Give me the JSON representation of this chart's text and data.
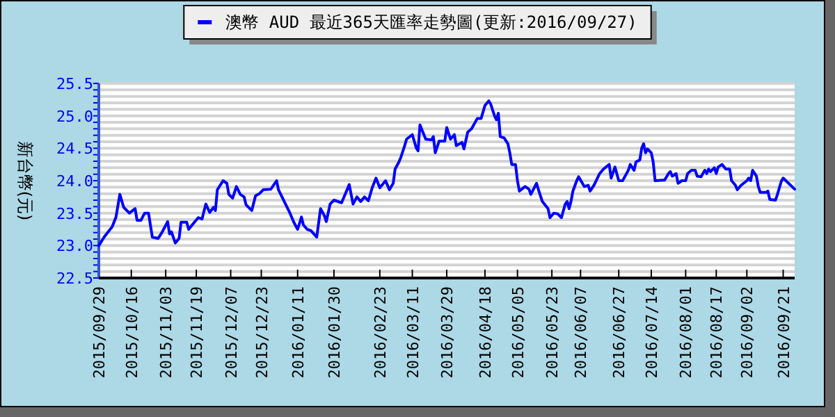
{
  "chart_data": {
    "type": "line",
    "ylabel": "新台幣(元)",
    "legend": "top",
    "grid": "y",
    "xlim": [
      "2015-09-29",
      "2016-09-27"
    ],
    "xticks": [
      {
        "value": "2015-09-29",
        "label": "2015/09/29"
      },
      {
        "value": "2015-10-16",
        "label": "2015/10/16"
      },
      {
        "value": "2015-11-03",
        "label": "2015/11/03"
      },
      {
        "value": "2015-11-19",
        "label": "2015/11/19"
      },
      {
        "value": "2015-12-07",
        "label": "2015/12/07"
      },
      {
        "value": "2015-12-23",
        "label": "2015/12/23"
      },
      {
        "value": "2016-01-11",
        "label": "2016/01/11"
      },
      {
        "value": "2016-01-30",
        "label": "2016/01/30"
      },
      {
        "value": "2016-02-23",
        "label": "2016/02/23"
      },
      {
        "value": "2016-03-11",
        "label": "2016/03/11"
      },
      {
        "value": "2016-03-29",
        "label": "2016/03/29"
      },
      {
        "value": "2016-04-18",
        "label": "2016/04/18"
      },
      {
        "value": "2016-05-05",
        "label": "2016/05/05"
      },
      {
        "value": "2016-05-23",
        "label": "2016/05/23"
      },
      {
        "value": "2016-06-07",
        "label": "2016/06/07"
      },
      {
        "value": "2016-06-27",
        "label": "2016/06/27"
      },
      {
        "value": "2016-07-14",
        "label": "2016/07/14"
      },
      {
        "value": "2016-08-01",
        "label": "2016/08/01"
      },
      {
        "value": "2016-08-17",
        "label": "2016/08/17"
      },
      {
        "value": "2016-09-02",
        "label": "2016/09/02"
      },
      {
        "value": "2016-09-21",
        "label": "2016/09/21"
      }
    ],
    "ylim": [
      22.5,
      25.5
    ],
    "yticks": [
      22.5,
      {
        "value": 22.6,
        "label": null
      },
      {
        "value": 22.7,
        "label": null
      },
      {
        "value": 22.8,
        "label": null
      },
      {
        "value": 22.9,
        "label": null
      },
      {
        "value": 23,
        "label": "23.0"
      },
      {
        "value": 23.1,
        "label": null
      },
      {
        "value": 23.2,
        "label": null
      },
      {
        "value": 23.3,
        "label": null
      },
      {
        "value": 23.4,
        "label": null
      },
      23.5,
      {
        "value": 23.6,
        "label": null
      },
      {
        "value": 23.7,
        "label": null
      },
      {
        "value": 23.8,
        "label": null
      },
      {
        "value": 23.9,
        "label": null
      },
      {
        "value": 24,
        "label": "24.0"
      },
      {
        "value": 24.1,
        "label": null
      },
      {
        "value": 24.2,
        "label": null
      },
      {
        "value": 24.3,
        "label": null
      },
      {
        "value": 24.4,
        "label": null
      },
      24.5,
      {
        "value": 24.6,
        "label": null
      },
      {
        "value": 24.7,
        "label": null
      },
      {
        "value": 24.8,
        "label": null
      },
      {
        "value": 24.9,
        "label": null
      },
      {
        "value": 25,
        "label": "25.0"
      },
      {
        "value": 25.1,
        "label": null
      },
      {
        "value": 25.2,
        "label": null
      },
      {
        "value": 25.3,
        "label": null
      },
      {
        "value": 25.4,
        "label": null
      },
      25.5
    ],
    "x": [
      "2015-09-29",
      "2015-10-02",
      "2015-10-06",
      "2015-10-08",
      "2015-10-10",
      "2015-10-12",
      "2015-10-15",
      "2015-10-18",
      "2015-10-19",
      "2015-10-21",
      "2015-10-23",
      "2015-10-25",
      "2015-10-27",
      "2015-10-30",
      "2015-11-01",
      "2015-11-04",
      "2015-11-05",
      "2015-11-06",
      "2015-11-08",
      "2015-11-10",
      "2015-11-11",
      "2015-11-14",
      "2015-11-15",
      "2015-11-18",
      "2015-11-20",
      "2015-11-22",
      "2015-11-24",
      "2015-11-26",
      "2015-11-28",
      "2015-11-29",
      "2015-11-30",
      "2015-12-03",
      "2015-12-05",
      "2015-12-06",
      "2015-12-08",
      "2015-12-10",
      "2015-12-12",
      "2015-12-14",
      "2015-12-15",
      "2015-12-18",
      "2015-12-20",
      "2015-12-22",
      "2015-12-24",
      "2015-12-28",
      "2015-12-31",
      "2016-01-01",
      "2016-01-04",
      "2016-01-07",
      "2016-01-09",
      "2016-01-11",
      "2016-01-13",
      "2016-01-14",
      "2016-01-16",
      "2016-01-18",
      "2016-01-21",
      "2016-01-23",
      "2016-01-25",
      "2016-01-26",
      "2016-01-28",
      "2016-01-30",
      "2016-02-03",
      "2016-02-07",
      "2016-02-09",
      "2016-02-11",
      "2016-02-13",
      "2016-02-15",
      "2016-02-17",
      "2016-02-19",
      "2016-02-21",
      "2016-02-23",
      "2016-02-26",
      "2016-02-28",
      "2016-03-01",
      "2016-03-02",
      "2016-03-04",
      "2016-03-05",
      "2016-03-07",
      "2016-03-08",
      "2016-03-11",
      "2016-03-13",
      "2016-03-14",
      "2016-03-15",
      "2016-03-18",
      "2016-03-21",
      "2016-03-22",
      "2016-03-23",
      "2016-03-25",
      "2016-03-28",
      "2016-03-29",
      "2016-03-31",
      "2016-04-02",
      "2016-04-03",
      "2016-04-06",
      "2016-04-07",
      "2016-04-09",
      "2016-04-11",
      "2016-04-14",
      "2016-04-16",
      "2016-04-18",
      "2016-04-20",
      "2016-04-21",
      "2016-04-23",
      "2016-04-24",
      "2016-04-25",
      "2016-04-26",
      "2016-04-28",
      "2016-04-30",
      "2016-05-01",
      "2016-05-02",
      "2016-05-04",
      "2016-05-05",
      "2016-05-06",
      "2016-05-09",
      "2016-05-11",
      "2016-05-12",
      "2016-05-15",
      "2016-05-16",
      "2016-05-18",
      "2016-05-21",
      "2016-05-22",
      "2016-05-24",
      "2016-05-26",
      "2016-05-28",
      "2016-05-30",
      "2016-05-31",
      "2016-06-01",
      "2016-06-02",
      "2016-06-03",
      "2016-06-05",
      "2016-06-06",
      "2016-06-09",
      "2016-06-11",
      "2016-06-12",
      "2016-06-14",
      "2016-06-17",
      "2016-06-19",
      "2016-06-22",
      "2016-06-23",
      "2016-06-25",
      "2016-06-27",
      "2016-06-29",
      "2016-07-02",
      "2016-07-03",
      "2016-07-05",
      "2016-07-06",
      "2016-07-08",
      "2016-07-09",
      "2016-07-10",
      "2016-07-11",
      "2016-07-12",
      "2016-07-14",
      "2016-07-15",
      "2016-07-16",
      "2016-07-21",
      "2016-07-23",
      "2016-07-24",
      "2016-07-25",
      "2016-07-27",
      "2016-07-28",
      "2016-07-30",
      "2016-08-01",
      "2016-08-02",
      "2016-08-04",
      "2016-08-06",
      "2016-08-07",
      "2016-08-09",
      "2016-08-11",
      "2016-08-12",
      "2016-08-13",
      "2016-08-14",
      "2016-08-16",
      "2016-08-17",
      "2016-08-18",
      "2016-08-20",
      "2016-08-22",
      "2016-08-24",
      "2016-08-25",
      "2016-08-27",
      "2016-08-28",
      "2016-08-30",
      "2016-09-02",
      "2016-09-03",
      "2016-09-04",
      "2016-09-05",
      "2016-09-07",
      "2016-09-08",
      "2016-09-09",
      "2016-09-12",
      "2016-09-13",
      "2016-09-14",
      "2016-09-17",
      "2016-09-18",
      "2016-09-20",
      "2016-09-21",
      "2016-09-27"
    ],
    "series": [
      {
        "name": "澳幣 AUD 最近365天匯率走勢圖(更新:2016/09/27)",
        "color": "#0000ff",
        "values": [
          23.0,
          23.14,
          23.29,
          23.44,
          23.79,
          23.59,
          23.5,
          23.57,
          23.39,
          23.39,
          23.5,
          23.5,
          23.13,
          23.11,
          23.2,
          23.37,
          23.18,
          23.21,
          23.04,
          23.11,
          23.36,
          23.36,
          23.25,
          23.36,
          23.43,
          23.41,
          23.64,
          23.51,
          23.59,
          23.54,
          23.86,
          24.0,
          23.96,
          23.79,
          23.73,
          23.91,
          23.79,
          23.75,
          23.63,
          23.54,
          23.77,
          23.8,
          23.86,
          23.87,
          24.0,
          23.86,
          23.68,
          23.5,
          23.36,
          23.25,
          23.44,
          23.32,
          23.25,
          23.23,
          23.13,
          23.57,
          23.46,
          23.37,
          23.64,
          23.7,
          23.66,
          23.94,
          23.64,
          23.75,
          23.68,
          23.75,
          23.69,
          23.89,
          24.04,
          23.89,
          24.0,
          23.86,
          23.96,
          24.18,
          24.29,
          24.36,
          24.54,
          24.64,
          24.71,
          24.51,
          24.46,
          24.86,
          24.64,
          24.63,
          24.68,
          24.43,
          24.61,
          24.61,
          24.82,
          24.64,
          24.71,
          24.54,
          24.59,
          24.49,
          24.75,
          24.8,
          24.96,
          24.96,
          25.16,
          25.23,
          25.18,
          25.0,
          24.94,
          25.04,
          24.68,
          24.66,
          24.57,
          24.43,
          24.25,
          24.25,
          24.0,
          23.84,
          23.91,
          23.87,
          23.79,
          23.96,
          23.86,
          23.68,
          23.57,
          23.43,
          23.5,
          23.49,
          23.43,
          23.64,
          23.68,
          23.57,
          23.68,
          23.84,
          24.0,
          24.06,
          23.91,
          23.93,
          23.84,
          23.93,
          24.11,
          24.18,
          24.25,
          24.04,
          24.21,
          24.0,
          24.0,
          24.16,
          24.25,
          24.16,
          24.29,
          24.32,
          24.5,
          24.57,
          24.43,
          24.49,
          24.43,
          24.29,
          24.0,
          24.01,
          24.11,
          24.14,
          24.07,
          24.11,
          23.96,
          24.0,
          24.0,
          24.11,
          24.16,
          24.16,
          24.07,
          24.06,
          24.16,
          24.11,
          24.18,
          24.14,
          24.2,
          24.11,
          24.21,
          24.25,
          24.18,
          24.18,
          24.0,
          23.93,
          23.86,
          23.93,
          24.0,
          24.04,
          24.0,
          24.16,
          24.07,
          23.91,
          23.82,
          23.82,
          23.84,
          23.71,
          23.7,
          23.79,
          23.99,
          24.04,
          23.87
        ]
      }
    ]
  }
}
